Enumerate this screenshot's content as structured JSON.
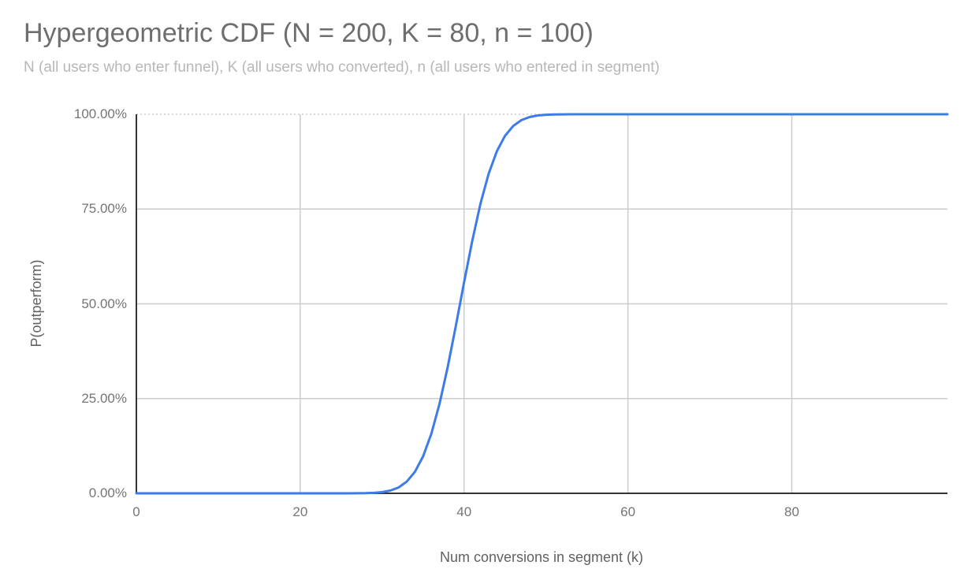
{
  "title": "Hypergeometric CDF (N = 200, K = 80, n = 100)",
  "subtitle": "N (all users who enter funnel), K (all users who converted), n (all users who entered in segment)",
  "colors": {
    "background": "#ffffff",
    "title": "#6e6e6e",
    "subtitle": "#b7b7b7",
    "tick": "#757575",
    "axis_title": "#616161",
    "grid": "#cccccc",
    "axis_line": "#333333",
    "series": "#3d7be8"
  },
  "chart_data": {
    "type": "line",
    "title": "Hypergeometric CDF (N = 200, K = 80, n = 100)",
    "subtitle": "N (all users who enter funnel), K (all users who converted), n (all users who entered in segment)",
    "xlabel": "Num conversions in segment (k)",
    "ylabel": "P(outperform)",
    "xlim": [
      0,
      99
    ],
    "ylim": [
      0,
      1
    ],
    "x_ticks": [
      0,
      20,
      40,
      60,
      80
    ],
    "y_ticks": [
      "0.00%",
      "25.00%",
      "50.00%",
      "75.00%",
      "100.00%"
    ],
    "grid": true,
    "legend": "none",
    "series": [
      {
        "name": "P(outperform)",
        "color": "#3d7be8",
        "x_start": 0,
        "x_step": 1,
        "values": [
          0,
          0,
          0,
          0,
          0,
          0,
          0,
          0,
          0,
          0,
          0,
          0,
          0,
          0,
          0,
          0,
          0,
          0,
          0,
          0,
          0,
          0,
          0,
          0,
          0,
          0,
          0.0001,
          0.0002,
          0.0005,
          0.0013,
          0.0031,
          0.0072,
          0.0154,
          0.0307,
          0.0567,
          0.0977,
          0.157,
          0.2361,
          0.3332,
          0.4428,
          0.5572,
          0.6668,
          0.7639,
          0.843,
          0.9023,
          0.9433,
          0.9693,
          0.9846,
          0.9928,
          0.9969,
          0.9987,
          0.9995,
          0.9998,
          0.9999,
          1,
          1,
          1,
          1,
          1,
          1,
          1,
          1,
          1,
          1,
          1,
          1,
          1,
          1,
          1,
          1,
          1,
          1,
          1,
          1,
          1,
          1,
          1,
          1,
          1,
          1,
          1,
          1,
          1,
          1,
          1,
          1,
          1,
          1,
          1,
          1,
          1,
          1,
          1,
          1,
          1,
          1,
          1,
          1,
          1,
          1
        ]
      }
    ]
  }
}
